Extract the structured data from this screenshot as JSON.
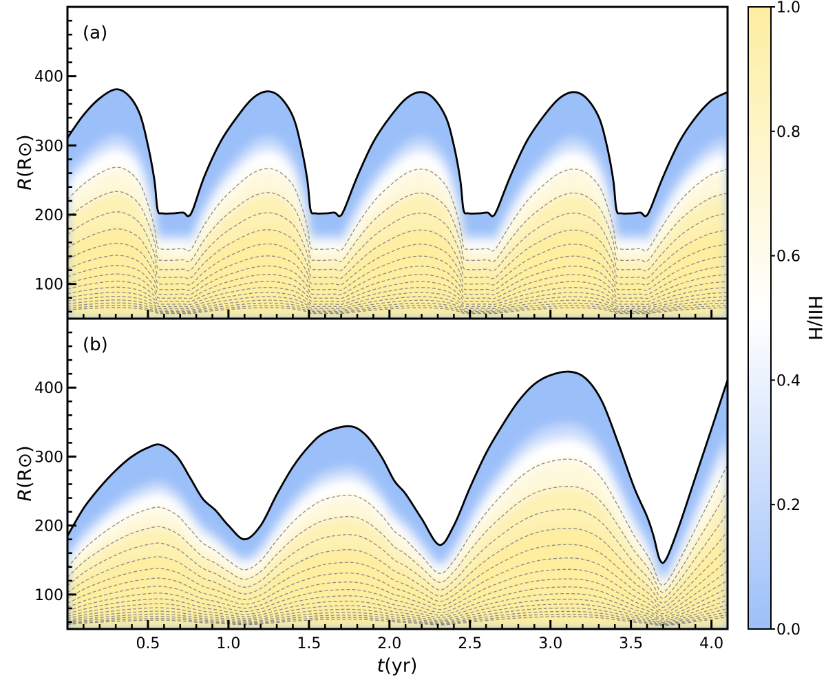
{
  "colors": {
    "ionized_low": "#9bbff9",
    "mid": "#ffffff",
    "ionized_high": "#fdeea0",
    "boundary": "#000000",
    "contour": "#8a8a8a"
  },
  "chart_data": [
    {
      "type": "area",
      "panel_label": "(a)",
      "xlim": [
        0,
        4.1
      ],
      "ylim": [
        50,
        500
      ],
      "ylabel_var": "R",
      "ylabel_unit": "(R⊙)",
      "yticks": [
        "100",
        "200",
        "300",
        "400"
      ],
      "ytick_values": [
        100,
        200,
        300,
        400
      ],
      "xticks_shown": false,
      "grid": false,
      "boundary": {
        "t": [
          0.0,
          0.1,
          0.2,
          0.3,
          0.38,
          0.45,
          0.5,
          0.54,
          0.56,
          0.59,
          0.66,
          0.72,
          0.75,
          0.78,
          0.85,
          0.95,
          1.05,
          1.15,
          1.24,
          1.32,
          1.4,
          1.45,
          1.49,
          1.51,
          1.54,
          1.61,
          1.66,
          1.69,
          1.72,
          1.8,
          1.9,
          2.0,
          2.1,
          2.19,
          2.27,
          2.35,
          2.4,
          2.44,
          2.46,
          2.49,
          2.56,
          2.61,
          2.64,
          2.67,
          2.75,
          2.85,
          2.95,
          3.05,
          3.14,
          3.22,
          3.3,
          3.35,
          3.39,
          3.41,
          3.44,
          3.51,
          3.56,
          3.59,
          3.62,
          3.7,
          3.8,
          3.9,
          4.0,
          4.1
        ],
        "R": [
          311,
          344,
          368,
          381,
          372,
          345,
          300,
          250,
          207,
          202,
          202,
          203,
          198,
          208,
          255,
          305,
          340,
          368,
          378,
          370,
          342,
          300,
          250,
          207,
          202,
          202,
          203,
          198,
          208,
          255,
          305,
          340,
          367,
          377,
          369,
          341,
          300,
          250,
          207,
          202,
          202,
          203,
          198,
          208,
          255,
          305,
          340,
          367,
          377,
          369,
          341,
          300,
          250,
          207,
          202,
          202,
          203,
          198,
          208,
          255,
          305,
          340,
          365,
          377
        ]
      }
    },
    {
      "type": "area",
      "panel_label": "(b)",
      "xlim": [
        0,
        4.1
      ],
      "ylim": [
        50,
        500
      ],
      "ylabel_var": "R",
      "ylabel_unit": "(R⊙)",
      "yticks": [
        "100",
        "200",
        "300",
        "400"
      ],
      "ytick_values": [
        100,
        200,
        300,
        400
      ],
      "xticks": [
        "0.5",
        "1.0",
        "1.5",
        "2.0",
        "2.5",
        "3.0",
        "3.5",
        "4.0"
      ],
      "xtick_values": [
        0.5,
        1.0,
        1.5,
        2.0,
        2.5,
        3.0,
        3.5,
        4.0
      ],
      "xlabel_var": "t",
      "xlabel_unit": "(yr)",
      "grid": false,
      "boundary": {
        "t": [
          0.0,
          0.1,
          0.2,
          0.3,
          0.4,
          0.5,
          0.58,
          0.68,
          0.76,
          0.84,
          0.92,
          1.0,
          1.1,
          1.2,
          1.3,
          1.4,
          1.5,
          1.6,
          1.75,
          1.85,
          1.95,
          2.03,
          2.1,
          2.2,
          2.31,
          2.4,
          2.5,
          2.6,
          2.7,
          2.8,
          2.9,
          3.0,
          3.12,
          3.22,
          3.32,
          3.42,
          3.52,
          3.6,
          3.64,
          3.68,
          3.72,
          3.8,
          3.9,
          4.0,
          4.1
        ],
        "R": [
          185,
          225,
          255,
          280,
          300,
          313,
          317,
          300,
          270,
          239,
          222,
          200,
          180,
          200,
          245,
          285,
          315,
          335,
          344,
          332,
          300,
          265,
          246,
          210,
          172,
          200,
          255,
          305,
          345,
          380,
          405,
          418,
          423,
          413,
          380,
          320,
          255,
          213,
          185,
          150,
          152,
          200,
          270,
          340,
          411
        ]
      }
    }
  ],
  "colorbar": {
    "label": "HII/H",
    "range": [
      0.0,
      1.0
    ],
    "ticks": [
      "0.0",
      "0.2",
      "0.4",
      "0.6",
      "0.8",
      "1.0"
    ],
    "tick_values": [
      0.0,
      0.2,
      0.4,
      0.6,
      0.8,
      1.0
    ]
  }
}
